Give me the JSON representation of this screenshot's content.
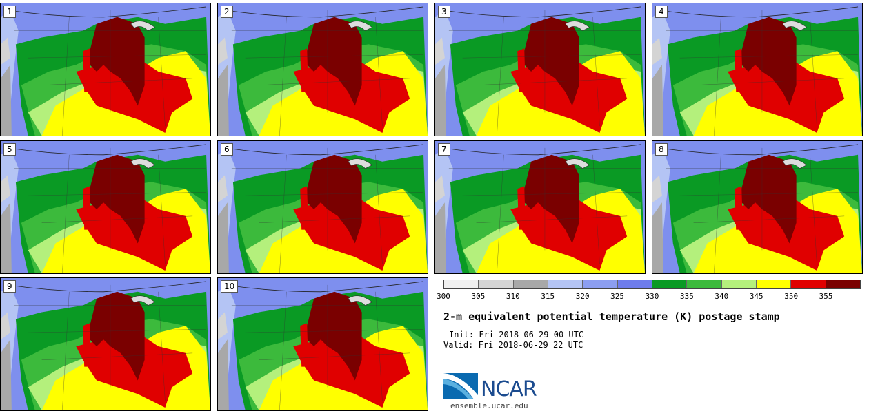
{
  "panels": [
    {
      "number": "1"
    },
    {
      "number": "2"
    },
    {
      "number": "3"
    },
    {
      "number": "4"
    },
    {
      "number": "5"
    },
    {
      "number": "6"
    },
    {
      "number": "7"
    },
    {
      "number": "8"
    },
    {
      "number": "9"
    },
    {
      "number": "10"
    }
  ],
  "colorbar": {
    "colors": [
      "#f0f0f0",
      "#d4d4d4",
      "#a8a8a8",
      "#b4c4f4",
      "#8c9ef0",
      "#6e7cec",
      "#0a9a24",
      "#3cba3c",
      "#b4f07c",
      "#ffff00",
      "#e00000",
      "#7a0000"
    ],
    "ticks": [
      "300",
      "305",
      "310",
      "315",
      "320",
      "325",
      "330",
      "335",
      "340",
      "345",
      "350",
      "355"
    ]
  },
  "title": "2-m equivalent potential temperature (K) postage stamp",
  "init": "Init: Fri 2018-06-29 00 UTC",
  "valid": "Valid: Fri 2018-06-29 22 UTC",
  "logo": {
    "text": "NCAR",
    "url": "ensemble.ucar.edu"
  }
}
